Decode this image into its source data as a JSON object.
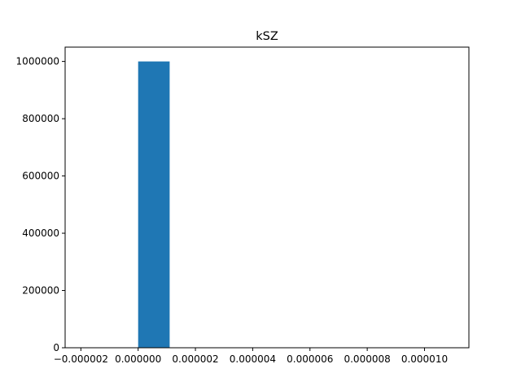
{
  "chart_data": {
    "type": "bar",
    "title": "kSZ",
    "xlabel": "",
    "ylabel": "",
    "bar_color": "#1f77b4",
    "bins": [
      {
        "x0": 0.0,
        "x1": 1.1e-06,
        "count": 1000000
      },
      {
        "x0": 1.1e-06,
        "x1": 2.2e-06,
        "count": 0
      },
      {
        "x0": 2.2e-06,
        "x1": 3.3e-06,
        "count": 0
      },
      {
        "x0": 3.3e-06,
        "x1": 4.4e-06,
        "count": 0
      },
      {
        "x0": 4.4e-06,
        "x1": 5.5e-06,
        "count": 0
      },
      {
        "x0": 5.5e-06,
        "x1": 6.6e-06,
        "count": 0
      },
      {
        "x0": 6.6e-06,
        "x1": 7.7e-06,
        "count": 0
      },
      {
        "x0": 7.7e-06,
        "x1": 8.8e-06,
        "count": 0
      },
      {
        "x0": 8.8e-06,
        "x1": 9.9e-06,
        "count": 0
      },
      {
        "x0": 9.9e-06,
        "x1": 1.1e-05,
        "count": 0
      }
    ],
    "xlim": [
      -2.55e-06,
      1.155e-05
    ],
    "ylim": [
      0,
      1050000
    ],
    "x_ticks": [
      {
        "value": -2e-06,
        "label": "−0.000002"
      },
      {
        "value": 0.0,
        "label": "0.000000"
      },
      {
        "value": 2e-06,
        "label": "0.000002"
      },
      {
        "value": 4e-06,
        "label": "0.000004"
      },
      {
        "value": 6e-06,
        "label": "0.000006"
      },
      {
        "value": 8e-06,
        "label": "0.000008"
      },
      {
        "value": 1e-05,
        "label": "0.000010"
      }
    ],
    "y_ticks": [
      {
        "value": 0,
        "label": "0"
      },
      {
        "value": 200000,
        "label": "200000"
      },
      {
        "value": 400000,
        "label": "400000"
      },
      {
        "value": 600000,
        "label": "600000"
      },
      {
        "value": 800000,
        "label": "800000"
      },
      {
        "value": 1000000,
        "label": "1000000"
      }
    ],
    "grid": false,
    "legend": "none"
  }
}
